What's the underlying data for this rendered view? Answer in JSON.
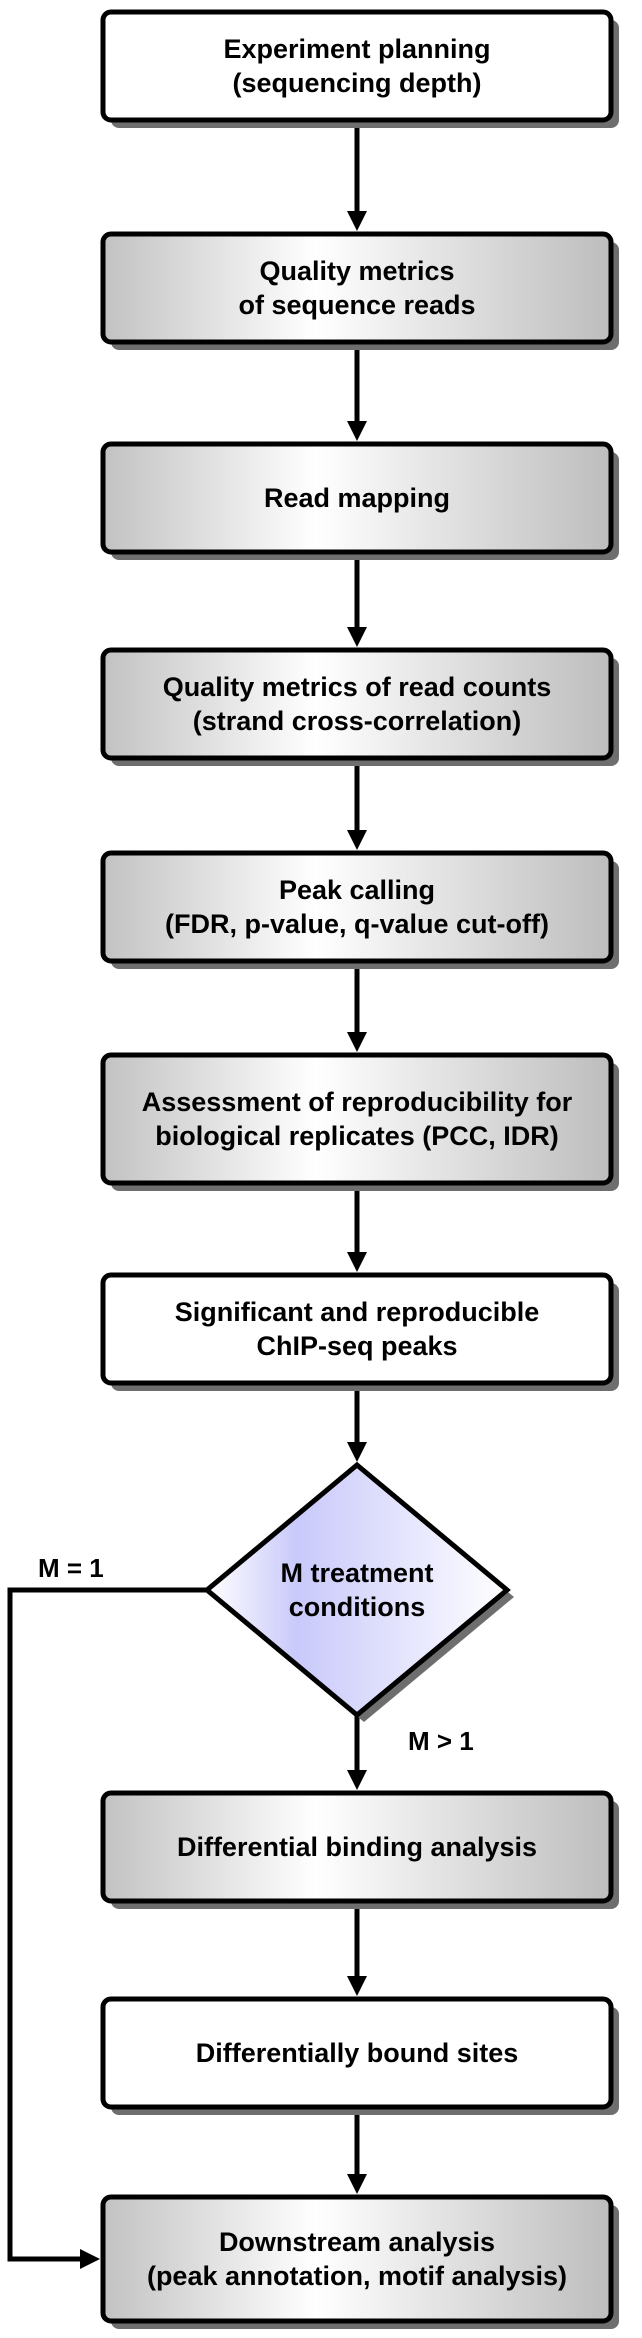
{
  "diagram": {
    "nodes": [
      {
        "id": "experiment-planning",
        "shape": "box",
        "fill": "white",
        "lines": [
          "Experiment planning",
          "(sequencing depth)"
        ]
      },
      {
        "id": "quality-metrics-reads",
        "shape": "box",
        "fill": "gradient",
        "lines": [
          "Quality metrics",
          "of sequence reads"
        ]
      },
      {
        "id": "read-mapping",
        "shape": "box",
        "fill": "gradient",
        "lines": [
          "Read mapping"
        ]
      },
      {
        "id": "quality-metrics-counts",
        "shape": "box",
        "fill": "gradient",
        "lines": [
          "Quality metrics of read counts",
          "(strand cross-correlation)"
        ]
      },
      {
        "id": "peak-calling",
        "shape": "box",
        "fill": "gradient",
        "lines": [
          "Peak calling",
          "(FDR, p-value, q-value cut-off)"
        ]
      },
      {
        "id": "reproducibility",
        "shape": "box",
        "fill": "gradient",
        "lines": [
          "Assessment of reproducibility for",
          "biological replicates (PCC, IDR)"
        ]
      },
      {
        "id": "significant-peaks",
        "shape": "box",
        "fill": "white",
        "lines": [
          "Significant and reproducible",
          "ChIP-seq peaks"
        ]
      },
      {
        "id": "treatment-conditions",
        "shape": "diamond",
        "fill": "blue-gradient",
        "lines": [
          "M treatment",
          "conditions"
        ]
      },
      {
        "id": "differential-binding",
        "shape": "box",
        "fill": "gradient",
        "lines": [
          "Differential binding analysis"
        ]
      },
      {
        "id": "differentially-bound",
        "shape": "box",
        "fill": "white",
        "lines": [
          "Differentially bound sites"
        ]
      },
      {
        "id": "downstream-analysis",
        "shape": "box",
        "fill": "gradient",
        "lines": [
          "Downstream analysis",
          "(peak annotation, motif analysis)"
        ]
      }
    ],
    "edge_labels": {
      "m_equals_1": "M = 1",
      "m_greater_1": "M > 1"
    },
    "colors": {
      "stroke": "#000000",
      "shadow": "#6e6e6e",
      "gray_light": "#ffffff",
      "gray_dark": "#c4c4c4",
      "blue_dark": "#c9c9fb",
      "blue_light": "#ffffff"
    }
  }
}
